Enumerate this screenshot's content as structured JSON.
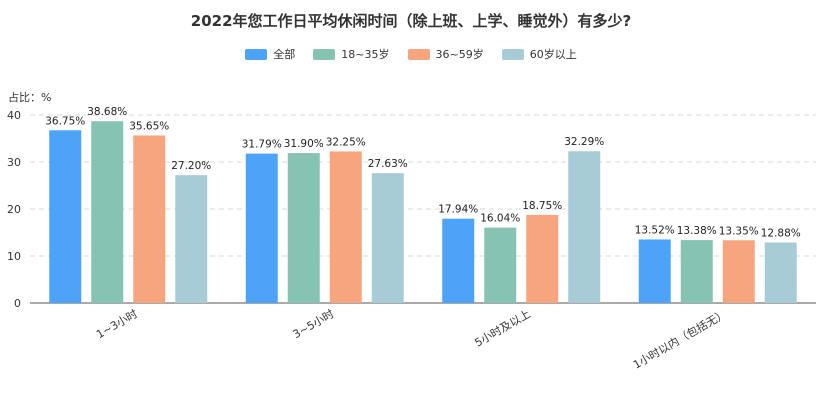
{
  "chart_data": {
    "type": "bar",
    "title": "2022年您工作日平均休闲时间（除上班、上学、睡觉外）有多少?",
    "unit_label": "占比：%",
    "categories": [
      "1~3小时",
      "3~5小时",
      "5小时及以上",
      "1小时以内（包括无）"
    ],
    "series": [
      {
        "name": "全部",
        "color": "#4da3f7",
        "values": [
          36.75,
          31.79,
          17.94,
          13.52
        ],
        "labels": [
          "36.75%",
          "31.79%",
          "17.94%",
          "13.52%"
        ]
      },
      {
        "name": "18~35岁",
        "color": "#86c3b3",
        "values": [
          38.68,
          31.9,
          16.04,
          13.38
        ],
        "labels": [
          "38.68%",
          "31.90%",
          "16.04%",
          "13.38%"
        ]
      },
      {
        "name": "36~59岁",
        "color": "#f6a57f",
        "values": [
          35.65,
          32.25,
          18.75,
          13.35
        ],
        "labels": [
          "35.65%",
          "32.25%",
          "18.75%",
          "13.35%"
        ]
      },
      {
        "name": "60岁以上",
        "color": "#a7ccd6",
        "values": [
          27.2,
          27.63,
          32.29,
          12.88
        ],
        "labels": [
          "27.20%",
          "27.63%",
          "32.29%",
          "12.88%"
        ]
      }
    ],
    "ylim": [
      0,
      40
    ],
    "yticks": [
      0,
      10,
      20,
      30,
      40
    ],
    "grid": true,
    "legend_position": "top-center"
  }
}
